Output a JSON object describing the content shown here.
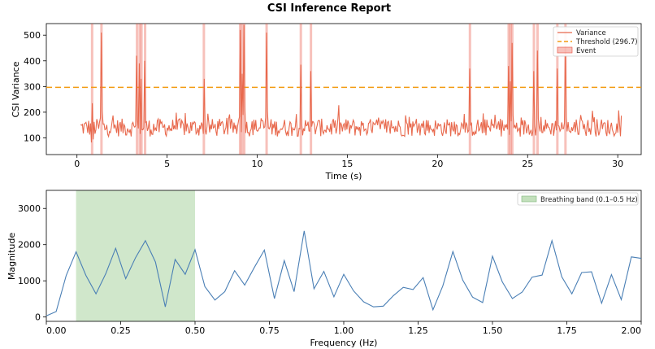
{
  "title": "CSI Inference Report",
  "colors": {
    "variance": "#e8694d",
    "threshold": "#f39c12",
    "event": "#e74c3c",
    "spectrum": "#4a7fb5",
    "band": "#a9d3a0"
  },
  "chart_data": [
    {
      "type": "line",
      "title": "",
      "xlabel": "Time (s)",
      "ylabel": "CSI Variance",
      "xlim": [
        -1.7,
        31.3
      ],
      "ylim": [
        35,
        545
      ],
      "xticks": [
        0,
        5,
        10,
        15,
        20,
        25,
        30
      ],
      "yticks": [
        100,
        200,
        300,
        400,
        500
      ],
      "grid": false,
      "legend": {
        "position": "top-right",
        "entries": [
          "Variance",
          "Threshold (296.7)",
          "Event"
        ]
      },
      "threshold": 296.7,
      "event_times": [
        0.84,
        1.36,
        3.33,
        3.48,
        3.58,
        3.78,
        7.04,
        9.05,
        9.15,
        9.28,
        10.52,
        12.42,
        12.98,
        21.8,
        23.95,
        24.05,
        24.15,
        25.35,
        25.55,
        26.65,
        27.1
      ],
      "spikes": [
        {
          "t": 0.84,
          "v": 235
        },
        {
          "t": 1.36,
          "v": 510
        },
        {
          "t": 3.33,
          "v": 420
        },
        {
          "t": 3.48,
          "v": 390
        },
        {
          "t": 3.58,
          "v": 330
        },
        {
          "t": 3.78,
          "v": 400
        },
        {
          "t": 7.04,
          "v": 330
        },
        {
          "t": 9.05,
          "v": 520
        },
        {
          "t": 9.15,
          "v": 350
        },
        {
          "t": 9.28,
          "v": 540
        },
        {
          "t": 10.52,
          "v": 510
        },
        {
          "t": 12.42,
          "v": 385
        },
        {
          "t": 12.98,
          "v": 360
        },
        {
          "t": 21.8,
          "v": 370
        },
        {
          "t": 23.95,
          "v": 380
        },
        {
          "t": 24.05,
          "v": 320
        },
        {
          "t": 24.15,
          "v": 470
        },
        {
          "t": 25.35,
          "v": 360
        },
        {
          "t": 25.55,
          "v": 440
        },
        {
          "t": 26.65,
          "v": 370
        },
        {
          "t": 27.1,
          "v": 455
        }
      ],
      "series": [
        {
          "name": "Variance",
          "t_start": 0.2,
          "t_end": 30.2,
          "base": 140,
          "noise": 35,
          "samples": 600
        }
      ]
    },
    {
      "type": "line",
      "title": "",
      "xlabel": "Frequency (Hz)",
      "ylabel": "Magnitude",
      "xlim": [
        0.0,
        2.0
      ],
      "ylim": [
        -120,
        3500
      ],
      "xticks": [
        "0.00",
        "0.25",
        "0.50",
        "0.75",
        "1.00",
        "1.25",
        "1.50",
        "1.75",
        "2.00"
      ],
      "yticks": [
        0,
        1000,
        2000,
        3000
      ],
      "grid": false,
      "legend": {
        "position": "top-right",
        "entries": [
          "Breathing band (0.1–0.5 Hz)"
        ]
      },
      "band": [
        0.1,
        0.5
      ],
      "series": [
        {
          "name": "Magnitude",
          "x": [
            0.0,
            0.033,
            0.067,
            0.1,
            0.133,
            0.167,
            0.2,
            0.233,
            0.267,
            0.3,
            0.333,
            0.367,
            0.4,
            0.433,
            0.467,
            0.5,
            0.533,
            0.567,
            0.6,
            0.633,
            0.667,
            0.7,
            0.733,
            0.767,
            0.8,
            0.833,
            0.867,
            0.9,
            0.933,
            0.967,
            1.0,
            1.033,
            1.067,
            1.1,
            1.133,
            1.167,
            1.2,
            1.233,
            1.267,
            1.3,
            1.333,
            1.367,
            1.4,
            1.433,
            1.467,
            1.5,
            1.533,
            1.567,
            1.6,
            1.633,
            1.667,
            1.7,
            1.733,
            1.767,
            1.8,
            1.833,
            1.867,
            1.9,
            1.933,
            1.967,
            2.0
          ],
          "values": [
            30,
            150,
            1150,
            1800,
            1150,
            640,
            1200,
            1900,
            1060,
            1640,
            2110,
            1520,
            280,
            1590,
            1180,
            1860,
            840,
            470,
            700,
            1280,
            880,
            1380,
            1850,
            510,
            1560,
            700,
            2380,
            780,
            1260,
            560,
            1180,
            720,
            420,
            280,
            300,
            590,
            820,
            760,
            1090,
            200,
            860,
            1810,
            1020,
            550,
            400,
            1680,
            970,
            510,
            690,
            1100,
            1160,
            2110,
            1110,
            640,
            1230,
            1250,
            380,
            1170,
            480,
            1660,
            1620
          ]
        }
      ]
    }
  ]
}
